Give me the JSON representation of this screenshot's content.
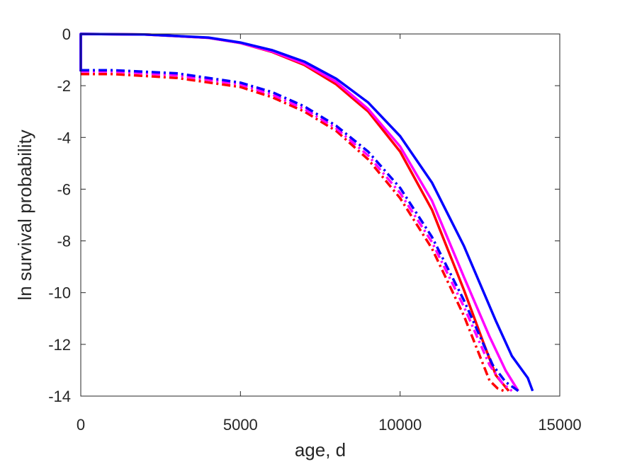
{
  "chart_data": {
    "type": "line",
    "title": "",
    "xlabel": "age, d",
    "ylabel": "ln survival probability",
    "xlim": [
      0,
      15000
    ],
    "ylim": [
      -14,
      0
    ],
    "xticks": [
      0,
      5000,
      10000,
      15000
    ],
    "xtick_labels": [
      "0",
      "5000",
      "10000",
      "15000"
    ],
    "yticks": [
      0,
      -2,
      -4,
      -6,
      -8,
      -10,
      -12,
      -14
    ],
    "ytick_labels": [
      "0",
      "-2",
      "-4",
      "-6",
      "-8",
      "-10",
      "-12",
      "-14"
    ],
    "grid": false,
    "legend": null,
    "series": [
      {
        "color": "#ff0000",
        "line_style": "solid",
        "x": [
          0,
          0,
          2000,
          4000,
          5000,
          6000,
          7000,
          8000,
          9000,
          10000,
          11000,
          12000,
          12600,
          13000,
          13400
        ],
        "y": [
          -1.45,
          0,
          -0.02,
          -0.15,
          -0.35,
          -0.7,
          -1.2,
          -1.95,
          -3.0,
          -4.55,
          -6.8,
          -9.9,
          -11.9,
          -13.2,
          -13.8
        ]
      },
      {
        "color": "#ff00ff",
        "line_style": "solid",
        "x": [
          0,
          0,
          2000,
          4000,
          5000,
          6000,
          7000,
          8000,
          9000,
          10000,
          11000,
          12000,
          12800,
          13300,
          13700
        ],
        "y": [
          -1.45,
          0,
          -0.02,
          -0.15,
          -0.35,
          -0.68,
          -1.15,
          -1.85,
          -2.9,
          -4.35,
          -6.45,
          -9.4,
          -11.7,
          -13.0,
          -13.8
        ]
      },
      {
        "color": "#0000ff",
        "line_style": "solid",
        "x": [
          0,
          0,
          2000,
          4000,
          5000,
          6000,
          7000,
          8000,
          9000,
          10000,
          11000,
          12000,
          13000,
          13500,
          14000,
          14150
        ],
        "y": [
          -1.45,
          0,
          -0.02,
          -0.14,
          -0.33,
          -0.63,
          -1.07,
          -1.73,
          -2.65,
          -3.95,
          -5.75,
          -8.2,
          -11.1,
          -12.45,
          -13.3,
          -13.8
        ]
      },
      {
        "color": "#ff0000",
        "line_style": "dashdot",
        "x": [
          0,
          1000,
          3000,
          5000,
          6000,
          7000,
          8000,
          9000,
          10000,
          11000,
          12000,
          12800,
          13050,
          13250
        ],
        "y": [
          -1.55,
          -1.55,
          -1.7,
          -2.05,
          -2.45,
          -3.0,
          -3.75,
          -4.85,
          -6.35,
          -8.3,
          -10.9,
          -13.4,
          -13.7,
          -13.8
        ]
      },
      {
        "color": "#ff00ff",
        "line_style": "dashdot",
        "x": [
          0,
          1000,
          3000,
          5000,
          6000,
          7000,
          8000,
          9000,
          10000,
          11000,
          12000,
          12800,
          13200,
          13500
        ],
        "y": [
          -1.45,
          -1.45,
          -1.6,
          -1.95,
          -2.35,
          -2.9,
          -3.65,
          -4.7,
          -6.15,
          -8.05,
          -10.55,
          -12.8,
          -13.5,
          -13.8
        ]
      },
      {
        "color": "#0000ff",
        "line_style": "dashdot",
        "x": [
          0,
          1000,
          3000,
          5000,
          6000,
          7000,
          8000,
          9000,
          10000,
          11000,
          12000,
          12900,
          13300,
          13700
        ],
        "y": [
          -1.4,
          -1.4,
          -1.52,
          -1.88,
          -2.25,
          -2.8,
          -3.55,
          -4.55,
          -5.95,
          -7.85,
          -10.3,
          -12.8,
          -13.45,
          -13.8
        ]
      }
    ]
  }
}
